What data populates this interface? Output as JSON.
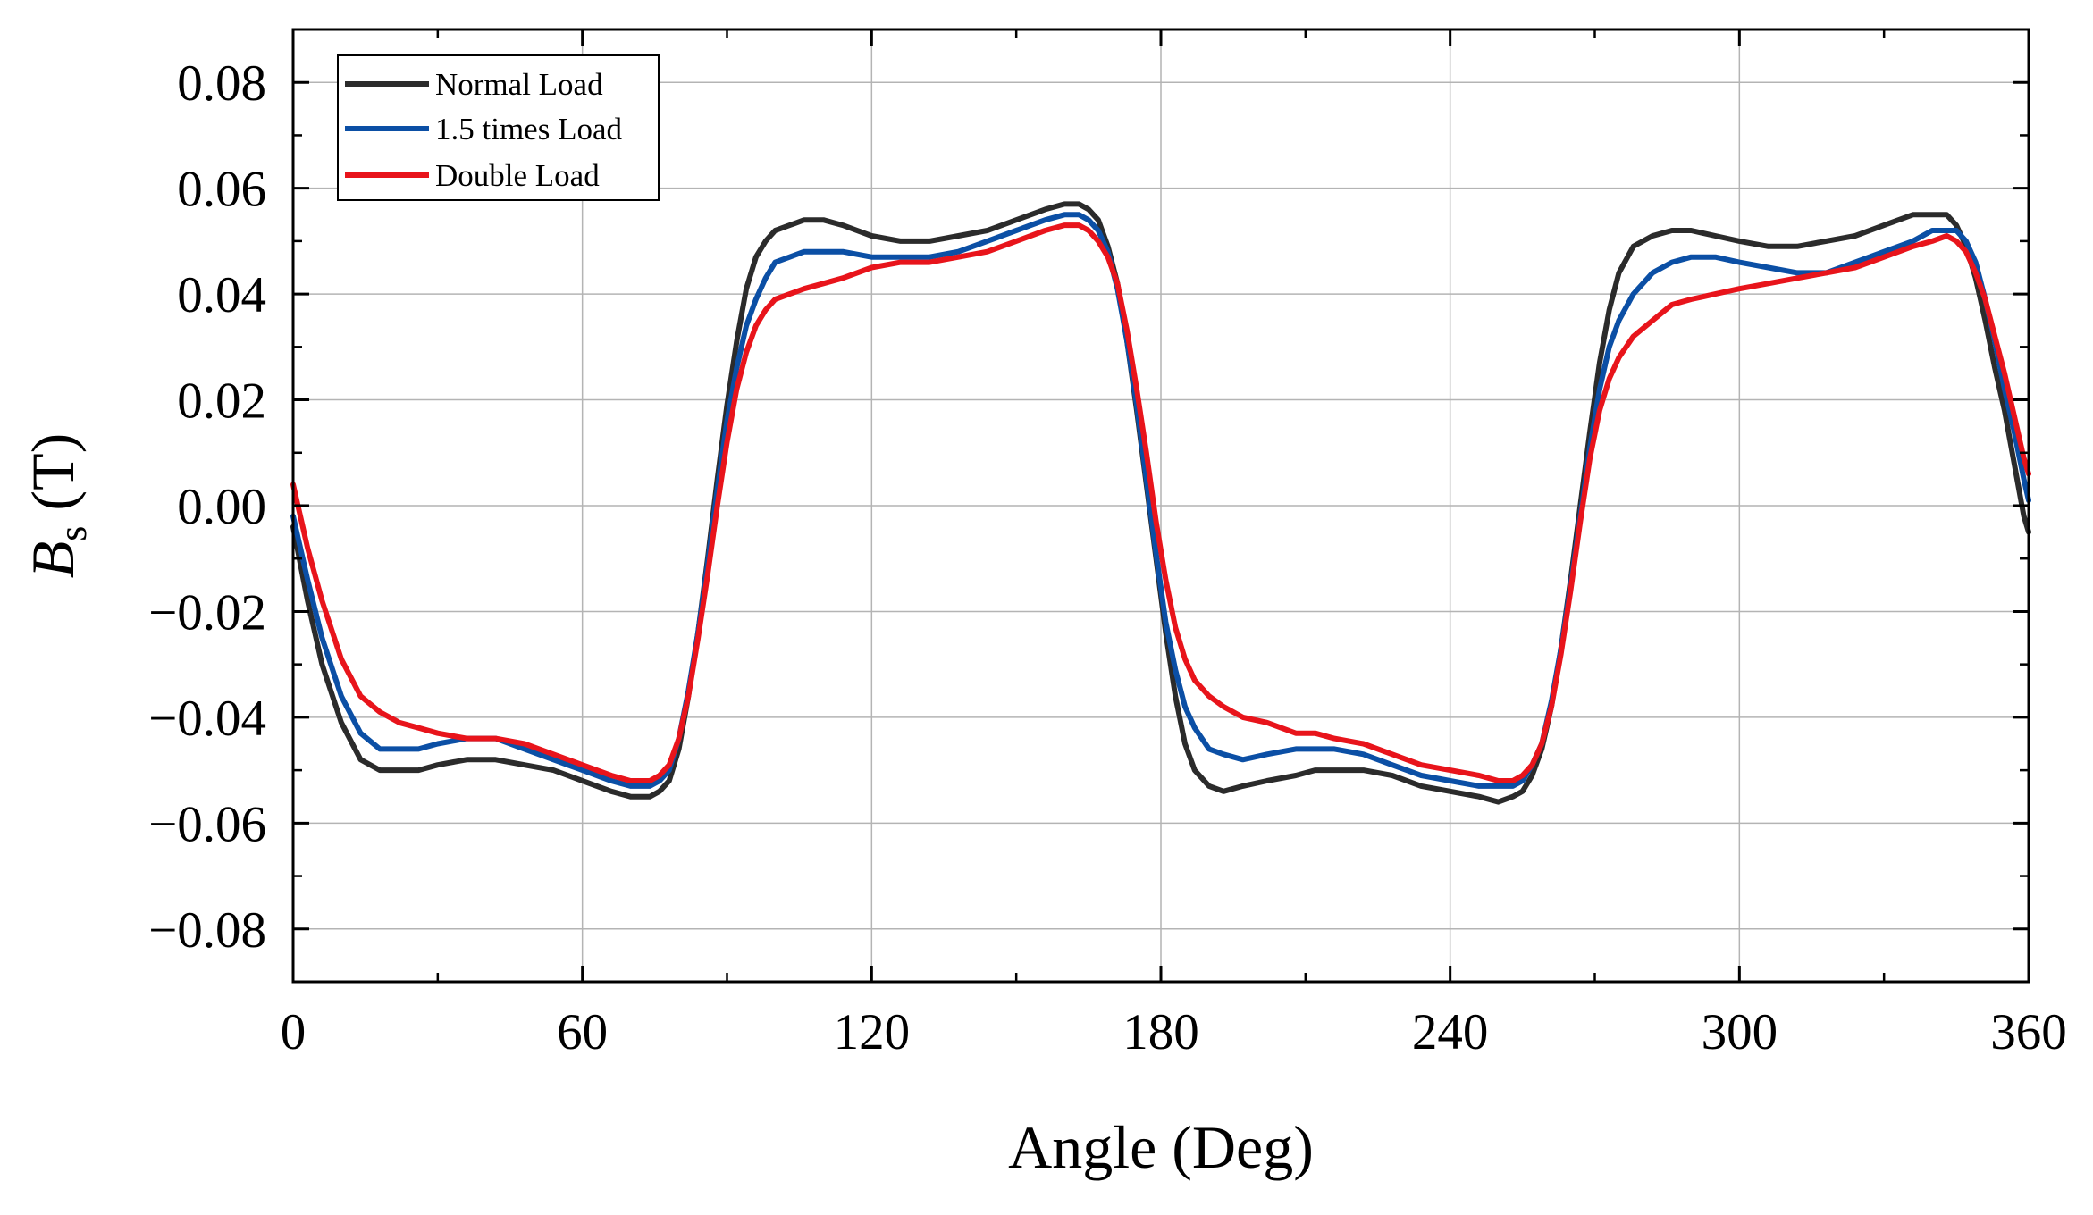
{
  "chart_data": {
    "type": "line",
    "title": "",
    "xlabel": "Angle (Deg)",
    "ylabel_main": "B",
    "ylabel_sub": "s",
    "ylabel_unit": " (T)",
    "xlim": [
      0,
      360
    ],
    "ylim": [
      -0.09,
      0.09
    ],
    "x_ticks": [
      0,
      60,
      120,
      180,
      240,
      300,
      360
    ],
    "x_tick_labels": [
      "0",
      "60",
      "120",
      "180",
      "240",
      "300",
      "360"
    ],
    "y_ticks": [
      -0.08,
      -0.06,
      -0.04,
      -0.02,
      0,
      0.02,
      0.04,
      0.06,
      0.08
    ],
    "y_tick_labels": [
      "−0.08",
      "−0.06",
      "−0.04",
      "−0.02",
      "0.00",
      "0.02",
      "0.04",
      "0.06",
      "0.08"
    ],
    "grid": true,
    "legend_position": "top-left",
    "series": [
      {
        "name": "Normal Load",
        "color": "#2b2b2b",
        "x": [
          0,
          3,
          6,
          10,
          14,
          18,
          22,
          26,
          30,
          36,
          42,
          48,
          54,
          60,
          66,
          70,
          74,
          76,
          78,
          80,
          82,
          84,
          86,
          88,
          90,
          92,
          94,
          96,
          98,
          100,
          103,
          106,
          110,
          114,
          120,
          126,
          132,
          138,
          144,
          150,
          156,
          160,
          163,
          165,
          167,
          169,
          171,
          173,
          175,
          177,
          179,
          181,
          183,
          185,
          187,
          190,
          193,
          197,
          202,
          208,
          212,
          216,
          222,
          228,
          234,
          240,
          246,
          250,
          253,
          255,
          257,
          259,
          261,
          263,
          265,
          267,
          269,
          271,
          273,
          275,
          278,
          282,
          286,
          290,
          295,
          300,
          306,
          312,
          318,
          324,
          330,
          336,
          340,
          343,
          345,
          347,
          349,
          351,
          353,
          355,
          357,
          359,
          360
        ],
        "y": [
          -0.004,
          -0.018,
          -0.03,
          -0.041,
          -0.048,
          -0.05,
          -0.05,
          -0.05,
          -0.049,
          -0.048,
          -0.048,
          -0.049,
          -0.05,
          -0.052,
          -0.054,
          -0.055,
          -0.055,
          -0.054,
          -0.052,
          -0.046,
          -0.036,
          -0.024,
          -0.01,
          0.005,
          0.019,
          0.031,
          0.041,
          0.047,
          0.05,
          0.052,
          0.053,
          0.054,
          0.054,
          0.053,
          0.051,
          0.05,
          0.05,
          0.051,
          0.052,
          0.054,
          0.056,
          0.057,
          0.057,
          0.056,
          0.054,
          0.049,
          0.042,
          0.031,
          0.018,
          0.004,
          -0.01,
          -0.024,
          -0.036,
          -0.045,
          -0.05,
          -0.053,
          -0.054,
          -0.053,
          -0.052,
          -0.051,
          -0.05,
          -0.05,
          -0.05,
          -0.051,
          -0.053,
          -0.054,
          -0.055,
          -0.056,
          -0.055,
          -0.054,
          -0.051,
          -0.046,
          -0.038,
          -0.027,
          -0.014,
          0.0,
          0.014,
          0.027,
          0.037,
          0.044,
          0.049,
          0.051,
          0.052,
          0.052,
          0.051,
          0.05,
          0.049,
          0.049,
          0.05,
          0.051,
          0.053,
          0.055,
          0.055,
          0.055,
          0.053,
          0.049,
          0.043,
          0.035,
          0.026,
          0.018,
          0.008,
          -0.002,
          -0.005
        ]
      },
      {
        "name": "1.5 times Load",
        "color": "#0b4fa5",
        "x": [
          0,
          3,
          6,
          10,
          14,
          18,
          22,
          26,
          30,
          36,
          42,
          48,
          54,
          60,
          66,
          70,
          74,
          76,
          78,
          80,
          82,
          84,
          86,
          88,
          90,
          92,
          94,
          96,
          98,
          100,
          103,
          106,
          110,
          114,
          120,
          126,
          132,
          138,
          144,
          150,
          156,
          160,
          163,
          165,
          167,
          169,
          171,
          173,
          175,
          177,
          179,
          181,
          183,
          185,
          187,
          190,
          193,
          197,
          202,
          208,
          212,
          216,
          222,
          228,
          234,
          240,
          246,
          250,
          253,
          255,
          257,
          259,
          261,
          263,
          265,
          267,
          269,
          271,
          273,
          275,
          278,
          282,
          286,
          290,
          295,
          300,
          306,
          312,
          318,
          324,
          330,
          336,
          340,
          343,
          345,
          347,
          349,
          351,
          353,
          355,
          357,
          359,
          360
        ],
        "y": [
          -0.002,
          -0.014,
          -0.025,
          -0.036,
          -0.043,
          -0.046,
          -0.046,
          -0.046,
          -0.045,
          -0.044,
          -0.044,
          -0.046,
          -0.048,
          -0.05,
          -0.052,
          -0.053,
          -0.053,
          -0.052,
          -0.05,
          -0.044,
          -0.035,
          -0.024,
          -0.011,
          0.003,
          0.016,
          0.026,
          0.034,
          0.039,
          0.043,
          0.046,
          0.047,
          0.048,
          0.048,
          0.048,
          0.047,
          0.047,
          0.047,
          0.048,
          0.05,
          0.052,
          0.054,
          0.055,
          0.055,
          0.054,
          0.052,
          0.048,
          0.041,
          0.031,
          0.019,
          0.005,
          -0.009,
          -0.022,
          -0.031,
          -0.038,
          -0.042,
          -0.046,
          -0.047,
          -0.048,
          -0.047,
          -0.046,
          -0.046,
          -0.046,
          -0.047,
          -0.049,
          -0.051,
          -0.052,
          -0.053,
          -0.053,
          -0.053,
          -0.052,
          -0.049,
          -0.045,
          -0.037,
          -0.027,
          -0.015,
          -0.002,
          0.011,
          0.022,
          0.03,
          0.035,
          0.04,
          0.044,
          0.046,
          0.047,
          0.047,
          0.046,
          0.045,
          0.044,
          0.044,
          0.046,
          0.048,
          0.05,
          0.052,
          0.052,
          0.052,
          0.05,
          0.046,
          0.039,
          0.031,
          0.022,
          0.014,
          0.005,
          0.001
        ]
      },
      {
        "name": "Double Load",
        "color": "#e8141b",
        "x": [
          0,
          3,
          6,
          10,
          14,
          18,
          22,
          26,
          30,
          36,
          42,
          48,
          54,
          60,
          66,
          70,
          74,
          76,
          78,
          80,
          82,
          84,
          86,
          88,
          90,
          92,
          94,
          96,
          98,
          100,
          103,
          106,
          110,
          114,
          120,
          126,
          132,
          138,
          144,
          150,
          156,
          160,
          163,
          165,
          167,
          169,
          171,
          173,
          175,
          177,
          179,
          181,
          183,
          185,
          187,
          190,
          193,
          197,
          202,
          208,
          212,
          216,
          222,
          228,
          234,
          240,
          246,
          250,
          253,
          255,
          257,
          259,
          261,
          263,
          265,
          267,
          269,
          271,
          273,
          275,
          278,
          282,
          286,
          290,
          295,
          300,
          306,
          312,
          318,
          324,
          330,
          336,
          340,
          343,
          345,
          347,
          349,
          351,
          353,
          355,
          357,
          359,
          360
        ],
        "y": [
          0.004,
          -0.008,
          -0.018,
          -0.029,
          -0.036,
          -0.039,
          -0.041,
          -0.042,
          -0.043,
          -0.044,
          -0.044,
          -0.045,
          -0.047,
          -0.049,
          -0.051,
          -0.052,
          -0.052,
          -0.051,
          -0.049,
          -0.044,
          -0.036,
          -0.025,
          -0.013,
          0.0,
          0.012,
          0.022,
          0.029,
          0.034,
          0.037,
          0.039,
          0.04,
          0.041,
          0.042,
          0.043,
          0.045,
          0.046,
          0.046,
          0.047,
          0.048,
          0.05,
          0.052,
          0.053,
          0.053,
          0.052,
          0.05,
          0.047,
          0.042,
          0.033,
          0.022,
          0.01,
          -0.003,
          -0.014,
          -0.023,
          -0.029,
          -0.033,
          -0.036,
          -0.038,
          -0.04,
          -0.041,
          -0.043,
          -0.043,
          -0.044,
          -0.045,
          -0.047,
          -0.049,
          -0.05,
          -0.051,
          -0.052,
          -0.052,
          -0.051,
          -0.049,
          -0.045,
          -0.038,
          -0.028,
          -0.016,
          -0.003,
          0.009,
          0.018,
          0.024,
          0.028,
          0.032,
          0.035,
          0.038,
          0.039,
          0.04,
          0.041,
          0.042,
          0.043,
          0.044,
          0.045,
          0.047,
          0.049,
          0.05,
          0.051,
          0.05,
          0.048,
          0.044,
          0.039,
          0.032,
          0.025,
          0.017,
          0.009,
          0.006
        ]
      }
    ]
  }
}
